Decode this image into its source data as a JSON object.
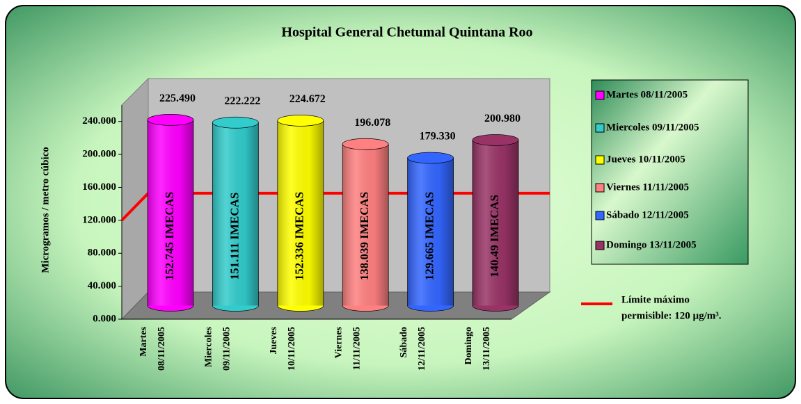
{
  "chart_data": {
    "type": "cylinder-bar",
    "title": "Hospital General Chetumal Quintana Roo",
    "ylabel": "Microgramos / metro cúbico",
    "categories": [
      [
        "Martes",
        "08/11/2005"
      ],
      [
        "Miercoles",
        "09/11/2005"
      ],
      [
        "Jueves",
        "10/11/2005"
      ],
      [
        "Viernes",
        "11/11/2005"
      ],
      [
        "Sábado",
        "12/11/2005"
      ],
      [
        "Domingo",
        "13/11/2005"
      ]
    ],
    "values": [
      225.49,
      222.222,
      224.672,
      196.078,
      179.33,
      200.98
    ],
    "value_labels": [
      "225.490",
      "222.222",
      "224.672",
      "196.078",
      "179.330",
      "200.980"
    ],
    "inner_labels": [
      "152.745 IMECAS",
      "151.111 IMECAS",
      "152.336 IMECAS",
      "138.039 IMECAS",
      "129.665 IMECAS",
      "140.49 IMECAS"
    ],
    "colors": [
      "#ff00ff",
      "#33cccc",
      "#ffff00",
      "#ff8080",
      "#3366ff",
      "#993366"
    ],
    "legend": [
      "Martes 08/11/2005",
      "Miercoles 09/11/2005",
      "Jueves 10/11/2005",
      "Viernes 11/11/2005",
      "Sábado 12/11/2005",
      "Domingo 13/11/2005"
    ],
    "ylim": [
      0,
      260
    ],
    "yticks": [
      {
        "value": 0,
        "label": "0.000"
      },
      {
        "value": 40,
        "label": "40.000"
      },
      {
        "value": 80,
        "label": "80.000"
      },
      {
        "value": 120,
        "label": "120.000"
      },
      {
        "value": 160,
        "label": "160.000"
      },
      {
        "value": 200,
        "label": "200.000"
      },
      {
        "value": 240,
        "label": "240.000"
      }
    ],
    "limit": {
      "value": 120,
      "color": "#ff0000",
      "label": [
        "Límite máximo",
        "permisible: 120 µg/m³."
      ]
    }
  }
}
